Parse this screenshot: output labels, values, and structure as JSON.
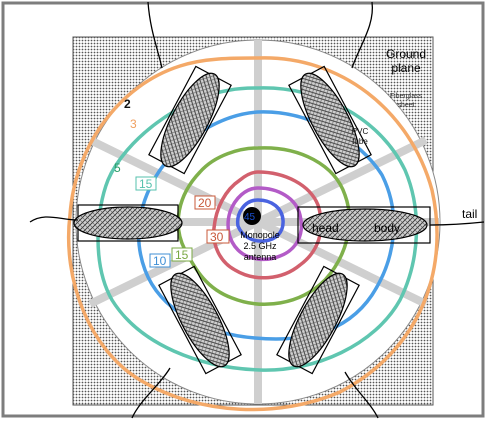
{
  "labels": {
    "ground_plane_line1": "Ground",
    "ground_plane_line2": "plane",
    "fiberglass_line1": "Fiberglass",
    "fiberglass_line2": "sheet",
    "pvc_line1": "PVC",
    "pvc_line2": "tube",
    "monopole_line1": "Monopole",
    "monopole_line2": "2.5 GHz",
    "monopole_line3": "antenna",
    "head": "head",
    "body": "body",
    "tail": "tail"
  },
  "contours": [
    {
      "value": "2",
      "color": "#111111"
    },
    {
      "value": "3",
      "color": "#f0a060"
    },
    {
      "value": "5",
      "color": "#2e9e6a"
    },
    {
      "value": "10",
      "color": "#3f8fd6"
    },
    {
      "value": "15",
      "color": "#56c2ad"
    },
    {
      "value": "15",
      "color": "#79a843"
    },
    {
      "value": "20",
      "color": "#c8583a"
    },
    {
      "value": "30",
      "color": "#c8583a"
    },
    {
      "value": "45",
      "color": "#1a4fd0"
    }
  ],
  "colors": {
    "orange": "#f4a968",
    "teal": "#5fc6b0",
    "blue": "#4a9ee6",
    "green": "#7fb04b",
    "red": "#d2606d",
    "purple": "#b35bc7",
    "indigo": "#4a63e0",
    "spoke": "#cfcfcf",
    "disc": "#ffffff",
    "ground": "#8a8a8a",
    "frame": "#7d7d7d"
  }
}
